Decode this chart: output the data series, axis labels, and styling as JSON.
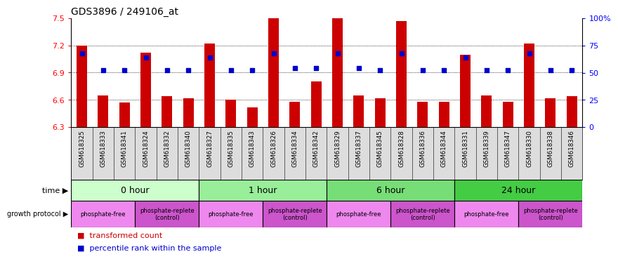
{
  "title": "GDS3896 / 249106_at",
  "samples": [
    "GSM618325",
    "GSM618333",
    "GSM618341",
    "GSM618324",
    "GSM618332",
    "GSM618340",
    "GSM618327",
    "GSM618335",
    "GSM618343",
    "GSM618326",
    "GSM618334",
    "GSM618342",
    "GSM618329",
    "GSM618337",
    "GSM618345",
    "GSM618328",
    "GSM618336",
    "GSM618344",
    "GSM618331",
    "GSM618339",
    "GSM618347",
    "GSM618330",
    "GSM618338",
    "GSM618346"
  ],
  "transformed_count": [
    7.2,
    6.65,
    6.57,
    7.12,
    6.64,
    6.62,
    7.22,
    6.6,
    6.52,
    7.5,
    6.58,
    6.8,
    7.5,
    6.65,
    6.62,
    7.47,
    6.58,
    6.58,
    7.1,
    6.65,
    6.58,
    7.22,
    6.62,
    6.64
  ],
  "percentile_rank": [
    68,
    52,
    52,
    64,
    52,
    52,
    64,
    52,
    52,
    68,
    54,
    54,
    68,
    54,
    52,
    68,
    52,
    52,
    64,
    52,
    52,
    68,
    52,
    52
  ],
  "ymin": 6.3,
  "ymax": 7.5,
  "yticks": [
    6.3,
    6.6,
    6.9,
    7.2,
    7.5
  ],
  "right_ytick_values": [
    0,
    25,
    50,
    75,
    100
  ],
  "right_ytick_labels": [
    "0",
    "25",
    "50",
    "75",
    "100%"
  ],
  "bar_color": "#cc0000",
  "dot_color": "#0000cc",
  "time_groups": [
    {
      "label": "0 hour",
      "start": 0,
      "end": 6,
      "color": "#ccffcc"
    },
    {
      "label": "1 hour",
      "start": 6,
      "end": 12,
      "color": "#99ee99"
    },
    {
      "label": "6 hour",
      "start": 12,
      "end": 18,
      "color": "#77dd77"
    },
    {
      "label": "24 hour",
      "start": 18,
      "end": 24,
      "color": "#44cc44"
    }
  ],
  "protocol_groups": [
    {
      "label": "phosphate-free",
      "start": 0,
      "end": 3,
      "color": "#ee88ee"
    },
    {
      "label": "phosphate-replete\n(control)",
      "start": 3,
      "end": 6,
      "color": "#cc55cc"
    },
    {
      "label": "phosphate-free",
      "start": 6,
      "end": 9,
      "color": "#ee88ee"
    },
    {
      "label": "phosphate-replete\n(control)",
      "start": 9,
      "end": 12,
      "color": "#cc55cc"
    },
    {
      "label": "phosphate-free",
      "start": 12,
      "end": 15,
      "color": "#ee88ee"
    },
    {
      "label": "phosphate-replete\n(control)",
      "start": 15,
      "end": 18,
      "color": "#cc55cc"
    },
    {
      "label": "phosphate-free",
      "start": 18,
      "end": 21,
      "color": "#ee88ee"
    },
    {
      "label": "phosphate-replete\n(control)",
      "start": 21,
      "end": 24,
      "color": "#cc55cc"
    }
  ]
}
